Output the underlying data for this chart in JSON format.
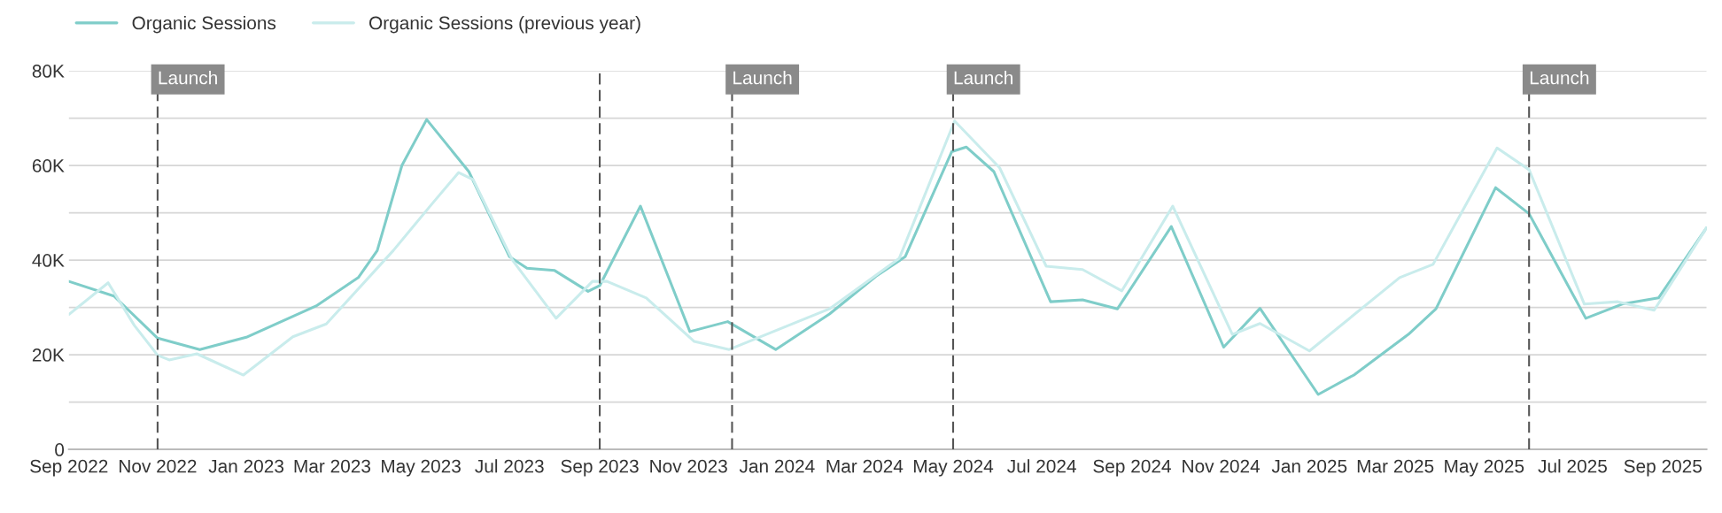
{
  "chart_data": {
    "type": "line",
    "series": [
      {
        "name": "Organic Sessions",
        "color": "#7fcdc9",
        "x": [
          "2022-09-01",
          "2022-10-02",
          "2022-11-01",
          "2022-11-30",
          "2023-01-01",
          "2023-02-18",
          "2023-03-19",
          "2023-04-01",
          "2023-04-18",
          "2023-05-05",
          "2023-06-03",
          "2023-07-01",
          "2023-07-13",
          "2023-08-01",
          "2023-08-24",
          "2023-09-01",
          "2023-09-29",
          "2023-11-02",
          "2023-11-28",
          "2023-12-31",
          "2024-02-06",
          "2024-03-09",
          "2024-03-29",
          "2024-04-30",
          "2024-05-10",
          "2024-05-29",
          "2024-07-07",
          "2024-07-29",
          "2024-08-22",
          "2024-09-28",
          "2024-11-03",
          "2024-11-28",
          "2025-01-07",
          "2025-02-01",
          "2025-03-10",
          "2025-03-29",
          "2025-05-09",
          "2025-06-01",
          "2025-07-10",
          "2025-08-04",
          "2025-08-29",
          "2025-10-01"
        ],
        "values": [
          35500,
          32400,
          23500,
          21100,
          23700,
          30300,
          36300,
          42000,
          60000,
          69700,
          58700,
          40700,
          38300,
          37800,
          33400,
          34600,
          51400,
          24900,
          27000,
          21100,
          28600,
          36600,
          40700,
          62900,
          63900,
          58700,
          31200,
          31600,
          29700,
          47100,
          21600,
          29800,
          11600,
          15800,
          24300,
          29700,
          55300,
          49800,
          27700,
          30700,
          32000,
          46800
        ]
      },
      {
        "name": "Organic Sessions (previous year)",
        "color": "#c9ecec",
        "x": [
          "2022-09-01",
          "2022-09-28",
          "2022-10-16",
          "2022-11-01",
          "2022-11-09",
          "2022-11-28",
          "2022-12-30",
          "2023-02-02",
          "2023-02-25",
          "2023-04-12",
          "2023-05-09",
          "2023-05-27",
          "2023-06-06",
          "2023-07-03",
          "2023-08-02",
          "2023-08-27",
          "2023-09-06",
          "2023-10-03",
          "2023-11-05",
          "2023-11-29",
          "2024-02-06",
          "2024-03-25",
          "2024-05-02",
          "2024-06-02",
          "2024-07-04",
          "2024-07-29",
          "2024-08-25",
          "2024-09-29",
          "2024-11-09",
          "2024-11-28",
          "2025-01-01",
          "2025-03-04",
          "2025-03-27",
          "2025-05-10",
          "2025-06-01",
          "2025-07-09",
          "2025-08-01",
          "2025-08-26",
          "2025-10-01"
        ],
        "values": [
          28500,
          35200,
          26200,
          19900,
          18900,
          20200,
          15700,
          23800,
          26500,
          42000,
          52000,
          58500,
          57000,
          40000,
          27700,
          35500,
          35500,
          32000,
          22800,
          21100,
          29700,
          40400,
          69400,
          59500,
          38700,
          38000,
          33500,
          51400,
          24300,
          26600,
          20800,
          36300,
          39100,
          63700,
          59100,
          30700,
          31200,
          29400,
          46800
        ]
      }
    ],
    "xlim": [
      "2022-09-01",
      "2025-10-01"
    ],
    "xticks": [
      {
        "value": "2022-09",
        "label": "Sep 2022"
      },
      {
        "value": "2022-11",
        "label": "Nov 2022"
      },
      {
        "value": "2023-01",
        "label": "Jan 2023"
      },
      {
        "value": "2023-03",
        "label": "Mar 2023"
      },
      {
        "value": "2023-05",
        "label": "May 2023"
      },
      {
        "value": "2023-07",
        "label": "Jul 2023"
      },
      {
        "value": "2023-09",
        "label": "Sep 2023"
      },
      {
        "value": "2023-11",
        "label": "Nov 2023"
      },
      {
        "value": "2024-01",
        "label": "Jan 2024"
      },
      {
        "value": "2024-03",
        "label": "Mar 2024"
      },
      {
        "value": "2024-05",
        "label": "May 2024"
      },
      {
        "value": "2024-07",
        "label": "Jul 2024"
      },
      {
        "value": "2024-09",
        "label": "Sep 2024"
      },
      {
        "value": "2024-11",
        "label": "Nov 2024"
      },
      {
        "value": "2025-01",
        "label": "Jan 2025"
      },
      {
        "value": "2025-03",
        "label": "Mar 2025"
      },
      {
        "value": "2025-05",
        "label": "May 2025"
      },
      {
        "value": "2025-07",
        "label": "Jul 2025"
      },
      {
        "value": "2025-09",
        "label": "Sep 2025"
      }
    ],
    "ylim": [
      0,
      80000
    ],
    "yticks": [
      0,
      {
        "value": 10000,
        "label": null
      },
      {
        "value": 20000,
        "label": "20K"
      },
      {
        "value": 30000,
        "label": null
      },
      {
        "value": 40000,
        "label": "40K"
      },
      {
        "value": 50000,
        "label": null
      },
      {
        "value": 60000,
        "label": "60K"
      },
      {
        "value": 70000,
        "label": null
      },
      {
        "value": 80000,
        "label": "80K"
      }
    ],
    "grid": "y",
    "legend": "top left",
    "marker": "none",
    "line_style": "solid",
    "ref_lines": [
      {
        "axis": "x",
        "value": "2022-11-01",
        "label": "Launch",
        "color": "#555555",
        "line_style": "dashed"
      },
      {
        "axis": "x",
        "value": "2023-09-01",
        "label": null,
        "color": "#555555",
        "line_style": "dashed"
      },
      {
        "axis": "x",
        "value": "2023-12-01",
        "label": "Launch",
        "color": "#555555",
        "line_style": "dashed"
      },
      {
        "axis": "x",
        "value": "2024-05-01",
        "label": "Launch",
        "color": "#555555",
        "line_style": "dashed"
      },
      {
        "axis": "x",
        "value": "2025-06-01",
        "label": "Launch",
        "color": "#555555",
        "line_style": "dashed"
      }
    ]
  }
}
